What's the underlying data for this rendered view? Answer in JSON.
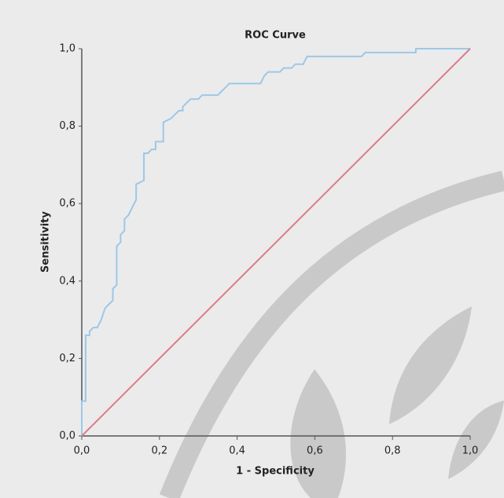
{
  "chart_data": {
    "type": "line",
    "title": "ROC Curve",
    "x_label": "1 - Specificity",
    "y_label": "Sensitivity",
    "xlim": [
      0,
      1
    ],
    "ylim": [
      0,
      1
    ],
    "xticks": [
      {
        "value": 0,
        "label": "0,0"
      },
      {
        "value": 0.2,
        "label": "0,2"
      },
      {
        "value": 0.4,
        "label": "0,4"
      },
      {
        "value": 0.6,
        "label": "0,6"
      },
      {
        "value": 0.8,
        "label": "0,8"
      },
      {
        "value": 1,
        "label": "1,0"
      }
    ],
    "yticks": [
      {
        "value": 0,
        "label": "0,0"
      },
      {
        "value": 0.2,
        "label": "0,2"
      },
      {
        "value": 0.4,
        "label": "0,4"
      },
      {
        "value": 0.6,
        "label": "0,6"
      },
      {
        "value": 0.8,
        "label": "0,8"
      },
      {
        "value": 1,
        "label": "1,0"
      }
    ],
    "grid": false,
    "series": [
      {
        "color": "#9cc8e8",
        "x": [
          0,
          0,
          0.01,
          0.01,
          0.02,
          0.02,
          0.03,
          0.04,
          0.05,
          0.06,
          0.07,
          0.08,
          0.08,
          0.09,
          0.09,
          0.1,
          0.1,
          0.11,
          0.11,
          0.12,
          0.13,
          0.14,
          0.14,
          0.16,
          0.16,
          0.17,
          0.18,
          0.19,
          0.19,
          0.21,
          0.21,
          0.23,
          0.24,
          0.25,
          0.26,
          0.26,
          0.27,
          0.28,
          0.3,
          0.31,
          0.35,
          0.36,
          0.37,
          0.38,
          0.46,
          0.47,
          0.48,
          0.51,
          0.52,
          0.54,
          0.55,
          0.57,
          0.58,
          0.72,
          0.73,
          0.86,
          0.86,
          1.0
        ],
        "values": [
          0,
          0.09,
          0.09,
          0.26,
          0.26,
          0.27,
          0.28,
          0.28,
          0.3,
          0.33,
          0.34,
          0.35,
          0.38,
          0.39,
          0.49,
          0.5,
          0.52,
          0.53,
          0.56,
          0.57,
          0.59,
          0.61,
          0.65,
          0.66,
          0.73,
          0.73,
          0.74,
          0.74,
          0.76,
          0.76,
          0.81,
          0.82,
          0.83,
          0.84,
          0.84,
          0.85,
          0.86,
          0.87,
          0.87,
          0.88,
          0.88,
          0.89,
          0.9,
          0.91,
          0.91,
          0.93,
          0.94,
          0.94,
          0.95,
          0.95,
          0.96,
          0.96,
          0.98,
          0.98,
          0.99,
          0.99,
          1.0,
          1.0
        ]
      },
      {
        "color": "#e07a8c",
        "x": [
          0,
          1
        ],
        "values": [
          0,
          1
        ]
      }
    ]
  }
}
